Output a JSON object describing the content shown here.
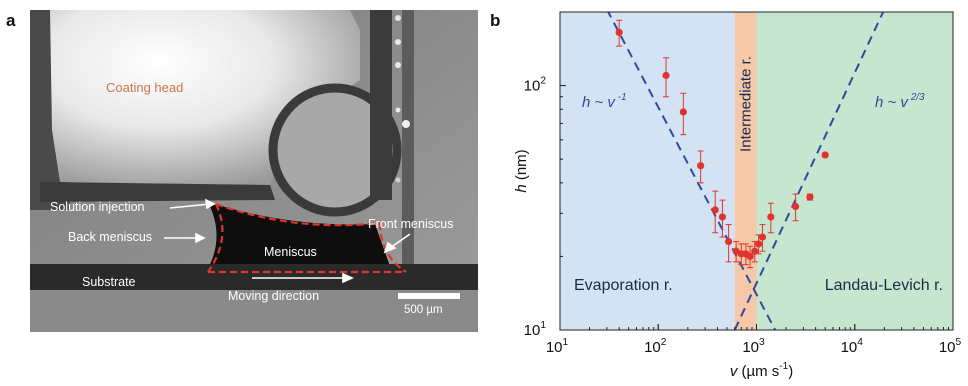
{
  "panel_a": {
    "letter": "a",
    "labels": {
      "coating_head": "Coating head",
      "solution_injection": "Solution injection",
      "back_meniscus": "Back meniscus",
      "meniscus": "Meniscus",
      "front_meniscus": "Front meniscus",
      "substrate": "Substrate",
      "moving_direction": "Moving direction",
      "scale_bar": "500 µm"
    }
  },
  "panel_b": {
    "letter": "b"
  },
  "chart_data": {
    "type": "scatter",
    "x_scale": "log",
    "y_scale": "log",
    "xlim": [
      10,
      100000
    ],
    "ylim": [
      10,
      200
    ],
    "xlabel_var": "v",
    "xlabel_unit": "(µm s",
    "xlabel_exp": "-1",
    "xlabel_close": ")",
    "ylabel_var": "h",
    "ylabel_unit": "(nm)",
    "x_ticks": [
      {
        "base": "10",
        "exp": "1",
        "value": 10
      },
      {
        "base": "10",
        "exp": "2",
        "value": 100
      },
      {
        "base": "10",
        "exp": "3",
        "value": 1000
      },
      {
        "base": "10",
        "exp": "4",
        "value": 10000
      },
      {
        "base": "10",
        "exp": "5",
        "value": 100000
      }
    ],
    "y_ticks": [
      {
        "base": "10",
        "exp": "1",
        "value": 10
      },
      {
        "base": "10",
        "exp": "2",
        "value": 100
      }
    ],
    "regions": [
      {
        "label": "Evaporation r.",
        "x_range": [
          10,
          600
        ],
        "color": "#d3e3f3"
      },
      {
        "label": "Intermediate r.",
        "x_range": [
          600,
          1000
        ],
        "color": "#f4c8a8"
      },
      {
        "label": "Landau-Levich r.",
        "x_range": [
          1000,
          100000
        ],
        "color": "#c7e6cf"
      }
    ],
    "fit_lines": [
      {
        "label_base": "h ~ v",
        "label_exp": "-1",
        "x_range": [
          30,
          1550
        ],
        "y_start": 205,
        "y_end": 10,
        "color": "#2e4a9e"
      },
      {
        "label_base": "h ~ v",
        "label_exp": "2/3",
        "x_range": [
          600,
          20000
        ],
        "y_start": 10,
        "y_end": 205,
        "color": "#2e4a9e"
      }
    ],
    "series": [
      {
        "color": "#e0342f",
        "points": [
          {
            "x": 40,
            "y": 165,
            "err": 20
          },
          {
            "x": 120,
            "y": 110,
            "err": 20
          },
          {
            "x": 180,
            "y": 78,
            "err": 15
          },
          {
            "x": 270,
            "y": 47,
            "err": 7
          },
          {
            "x": 380,
            "y": 31,
            "err": 6
          },
          {
            "x": 450,
            "y": 29,
            "err": 5
          },
          {
            "x": 520,
            "y": 23,
            "err": 4
          },
          {
            "x": 620,
            "y": 21,
            "err": 2
          },
          {
            "x": 700,
            "y": 20.5,
            "err": 2
          },
          {
            "x": 780,
            "y": 20.5,
            "err": 2
          },
          {
            "x": 860,
            "y": 20,
            "err": 2
          },
          {
            "x": 960,
            "y": 21,
            "err": 2
          },
          {
            "x": 1050,
            "y": 22.5,
            "err": 2
          },
          {
            "x": 1150,
            "y": 24,
            "err": 3
          },
          {
            "x": 1400,
            "y": 29,
            "err": 4
          },
          {
            "x": 2500,
            "y": 32,
            "err": 4
          },
          {
            "x": 3500,
            "y": 35,
            "err": 1
          },
          {
            "x": 5000,
            "y": 52,
            "err": 1
          }
        ]
      }
    ]
  }
}
